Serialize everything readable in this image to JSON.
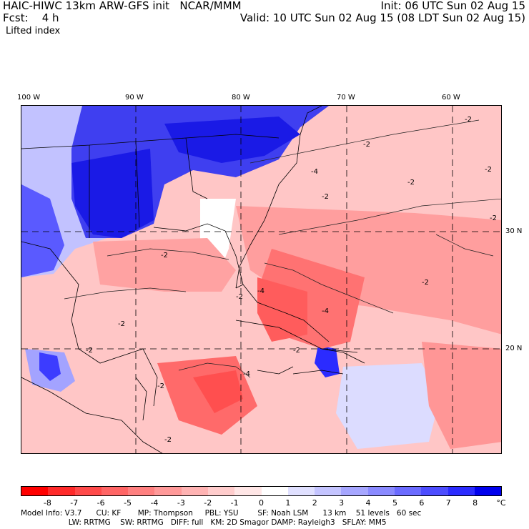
{
  "header": {
    "line1_left": "HAIC-HIWC 13km ARW-GFS init   NCAR/MMM",
    "line1_right": "Init: 06 UTC Sun 02 Aug 15",
    "line2_left": "Fcst:    4 h",
    "line2_right": "Valid: 10 UTC Sun 02 Aug 15 (08 LDT Sun 02 Aug 15)",
    "field_name": "Lifted index"
  },
  "axes": {
    "lon_labels": [
      "100 W",
      "90 W",
      "80 W",
      "70 W",
      "60 W"
    ],
    "lat_labels": [
      "30 N",
      "20 N"
    ]
  },
  "contour_labels": [
    "-2",
    "-2",
    "-2",
    "-2",
    "-2",
    "-2",
    "-2",
    "-2",
    "-2",
    "-2",
    "-2",
    "-2",
    "-2",
    "-2",
    "-4",
    "-4",
    "-4",
    "-4"
  ],
  "colorbar": {
    "labels": [
      "-8",
      "-7",
      "-6",
      "-5",
      "-4",
      "-3",
      "-2",
      "-1",
      "0",
      "1",
      "2",
      "3",
      "4",
      "5",
      "6",
      "7",
      "8"
    ],
    "unit": "°C",
    "colors": [
      "#ff0000",
      "#ff2a2a",
      "#ff4a4a",
      "#ff6565",
      "#ff8080",
      "#ff9999",
      "#ffb3b3",
      "#ffcccc",
      "#ffe6e6",
      "#ffffff",
      "#e0e0ff",
      "#c4c4ff",
      "#a6a6ff",
      "#8a8aff",
      "#6b6bff",
      "#4d4dff",
      "#2b2bff",
      "#0000ee"
    ]
  },
  "model_info": {
    "line1": "Model Info: V3.7      CU: KF       MP: Thompson     PBL: YSU        SF: Noah LSM      13 km    51 levels   60 sec",
    "line2": "                    LW: RRTMG    SW: RRTMG   DIFF: full   KM: 2D Smagor DAMP: Rayleigh3   SFLAY: MM5"
  },
  "colors": {
    "strong_blue": "#1a1ae6",
    "light_red": "#ff9494",
    "background": "#ffffff"
  }
}
